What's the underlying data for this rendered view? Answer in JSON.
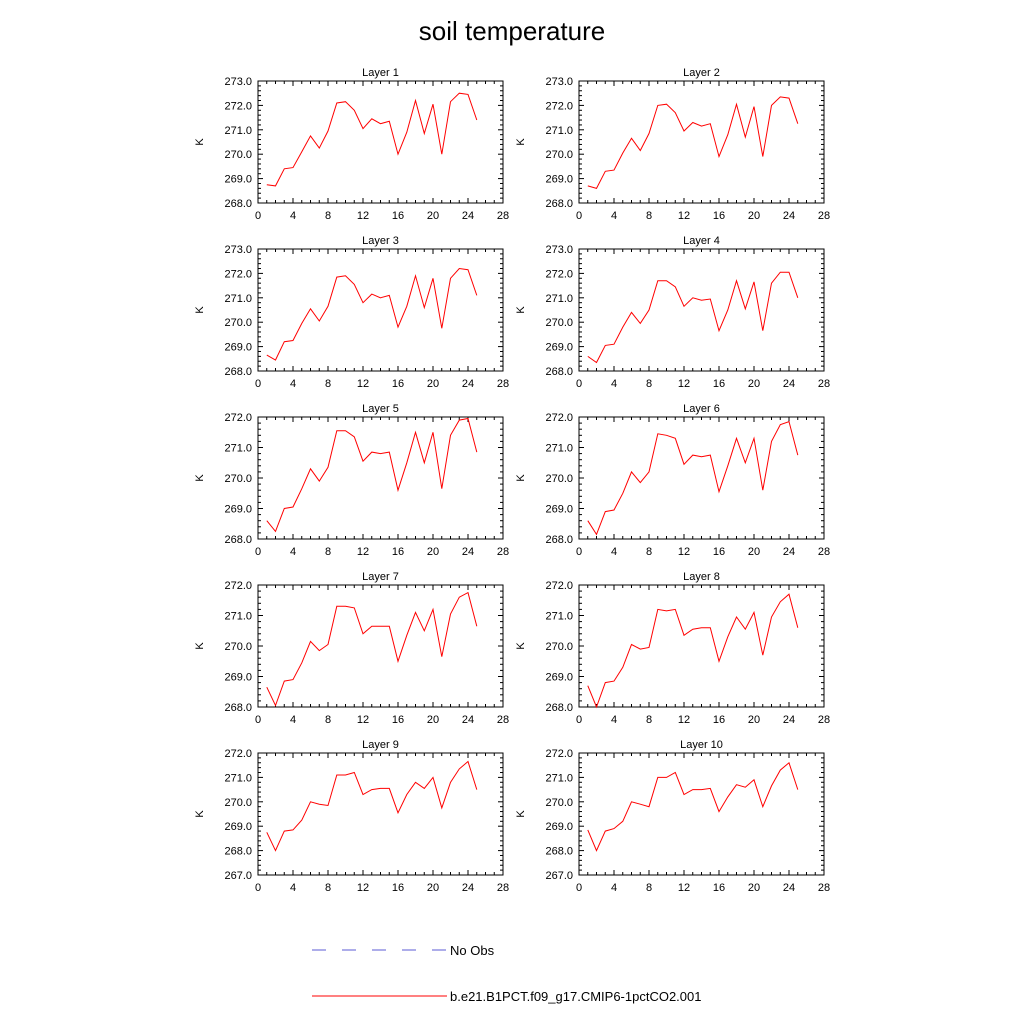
{
  "title": "soil temperature",
  "legend": {
    "entries": [
      {
        "label": "No Obs",
        "color": "#5b5bd6",
        "style": "dashed"
      },
      {
        "label": "b.e21.B1PCT.f09_g17.CMIP6-1pctCO2.001",
        "color": "#ff0000",
        "style": "solid"
      }
    ]
  },
  "chart_data": [
    {
      "type": "line",
      "title": "Layer 1",
      "ylabel": "K",
      "xlim": [
        0,
        28
      ],
      "ylim": [
        268,
        273
      ],
      "xticks": [
        0,
        4,
        8,
        12,
        16,
        20,
        24,
        28
      ],
      "yticks": [
        "268.0",
        "269.0",
        "270.0",
        "271.0",
        "272.0",
        "273.0"
      ],
      "series": [
        {
          "color": "#ff0000",
          "x": [
            1,
            2,
            3,
            4,
            5,
            6,
            7,
            8,
            9,
            10,
            11,
            12,
            13,
            14,
            15,
            16,
            17,
            18,
            19,
            20,
            21,
            22,
            23,
            24,
            25
          ],
          "y": [
            268.75,
            268.7,
            269.4,
            269.45,
            270.1,
            270.75,
            270.25,
            270.95,
            272.1,
            272.15,
            271.8,
            271.05,
            271.45,
            271.25,
            271.35,
            270.0,
            270.9,
            272.2,
            270.85,
            272.05,
            270.0,
            272.15,
            272.5,
            272.45,
            271.4
          ]
        }
      ]
    },
    {
      "type": "line",
      "title": "Layer 2",
      "ylabel": "K",
      "xlim": [
        0,
        28
      ],
      "ylim": [
        268,
        273
      ],
      "xticks": [
        0,
        4,
        8,
        12,
        16,
        20,
        24,
        28
      ],
      "yticks": [
        "268.0",
        "269.0",
        "270.0",
        "271.0",
        "272.0",
        "273.0"
      ],
      "series": [
        {
          "color": "#ff0000",
          "x": [
            1,
            2,
            3,
            4,
            5,
            6,
            7,
            8,
            9,
            10,
            11,
            12,
            13,
            14,
            15,
            16,
            17,
            18,
            19,
            20,
            21,
            22,
            23,
            24,
            25
          ],
          "y": [
            268.7,
            268.6,
            269.3,
            269.35,
            270.05,
            270.65,
            270.15,
            270.85,
            272.0,
            272.05,
            271.7,
            270.95,
            271.3,
            271.15,
            271.25,
            269.9,
            270.8,
            272.05,
            270.7,
            271.95,
            269.9,
            272.0,
            272.35,
            272.3,
            271.25
          ]
        }
      ]
    },
    {
      "type": "line",
      "title": "Layer 3",
      "ylabel": "K",
      "xlim": [
        0,
        28
      ],
      "ylim": [
        268,
        273
      ],
      "xticks": [
        0,
        4,
        8,
        12,
        16,
        20,
        24,
        28
      ],
      "yticks": [
        "268.0",
        "269.0",
        "270.0",
        "271.0",
        "272.0",
        "273.0"
      ],
      "series": [
        {
          "color": "#ff0000",
          "x": [
            1,
            2,
            3,
            4,
            5,
            6,
            7,
            8,
            9,
            10,
            11,
            12,
            13,
            14,
            15,
            16,
            17,
            18,
            19,
            20,
            21,
            22,
            23,
            24,
            25
          ],
          "y": [
            268.65,
            268.45,
            269.2,
            269.25,
            269.95,
            270.55,
            270.05,
            270.65,
            271.85,
            271.9,
            271.55,
            270.8,
            271.15,
            271.0,
            271.1,
            269.8,
            270.65,
            271.9,
            270.6,
            271.8,
            269.75,
            271.8,
            272.2,
            272.15,
            271.1
          ]
        }
      ]
    },
    {
      "type": "line",
      "title": "Layer 4",
      "ylabel": "K",
      "xlim": [
        0,
        28
      ],
      "ylim": [
        268,
        273
      ],
      "xticks": [
        0,
        4,
        8,
        12,
        16,
        20,
        24,
        28
      ],
      "yticks": [
        "268.0",
        "269.0",
        "270.0",
        "271.0",
        "272.0",
        "273.0"
      ],
      "series": [
        {
          "color": "#ff0000",
          "x": [
            1,
            2,
            3,
            4,
            5,
            6,
            7,
            8,
            9,
            10,
            11,
            12,
            13,
            14,
            15,
            16,
            17,
            18,
            19,
            20,
            21,
            22,
            23,
            24,
            25
          ],
          "y": [
            268.6,
            268.35,
            269.05,
            269.1,
            269.8,
            270.4,
            269.95,
            270.5,
            271.7,
            271.7,
            271.45,
            270.65,
            271.0,
            270.9,
            270.95,
            269.65,
            270.5,
            271.7,
            270.55,
            271.65,
            269.65,
            271.6,
            272.05,
            272.05,
            271.0
          ]
        }
      ]
    },
    {
      "type": "line",
      "title": "Layer 5",
      "ylabel": "K",
      "xlim": [
        0,
        28
      ],
      "ylim": [
        268,
        272
      ],
      "xticks": [
        0,
        4,
        8,
        12,
        16,
        20,
        24,
        28
      ],
      "yticks": [
        "268.0",
        "269.0",
        "270.0",
        "271.0",
        "272.0"
      ],
      "series": [
        {
          "color": "#ff0000",
          "x": [
            1,
            2,
            3,
            4,
            5,
            6,
            7,
            8,
            9,
            10,
            11,
            12,
            13,
            14,
            15,
            16,
            17,
            18,
            19,
            20,
            21,
            22,
            23,
            24,
            25
          ],
          "y": [
            268.6,
            268.25,
            269.0,
            269.05,
            269.65,
            270.3,
            269.9,
            270.35,
            271.55,
            271.55,
            271.35,
            270.55,
            270.85,
            270.8,
            270.85,
            269.6,
            270.5,
            271.5,
            270.5,
            271.5,
            269.65,
            271.4,
            271.9,
            271.95,
            270.85
          ]
        }
      ]
    },
    {
      "type": "line",
      "title": "Layer 6",
      "ylabel": "K",
      "xlim": [
        0,
        28
      ],
      "ylim": [
        268,
        272
      ],
      "xticks": [
        0,
        4,
        8,
        12,
        16,
        20,
        24,
        28
      ],
      "yticks": [
        "268.0",
        "269.0",
        "270.0",
        "271.0",
        "272.0"
      ],
      "series": [
        {
          "color": "#ff0000",
          "x": [
            1,
            2,
            3,
            4,
            5,
            6,
            7,
            8,
            9,
            10,
            11,
            12,
            13,
            14,
            15,
            16,
            17,
            18,
            19,
            20,
            21,
            22,
            23,
            24,
            25
          ],
          "y": [
            268.6,
            268.15,
            268.9,
            268.95,
            269.5,
            270.2,
            269.85,
            270.2,
            271.45,
            271.4,
            271.3,
            270.45,
            270.75,
            270.7,
            270.75,
            269.55,
            270.4,
            271.3,
            270.5,
            271.3,
            269.6,
            271.2,
            271.75,
            271.85,
            270.75
          ]
        }
      ]
    },
    {
      "type": "line",
      "title": "Layer 7",
      "ylabel": "K",
      "xlim": [
        0,
        28
      ],
      "ylim": [
        268,
        272
      ],
      "xticks": [
        0,
        4,
        8,
        12,
        16,
        20,
        24,
        28
      ],
      "yticks": [
        "268.0",
        "269.0",
        "270.0",
        "271.0",
        "272.0"
      ],
      "series": [
        {
          "color": "#ff0000",
          "x": [
            1,
            2,
            3,
            4,
            5,
            6,
            7,
            8,
            9,
            10,
            11,
            12,
            13,
            14,
            15,
            16,
            17,
            18,
            19,
            20,
            21,
            22,
            23,
            24,
            25
          ],
          "y": [
            268.65,
            268.05,
            268.85,
            268.9,
            269.45,
            270.15,
            269.85,
            270.05,
            271.3,
            271.3,
            271.25,
            270.4,
            270.65,
            270.65,
            270.65,
            269.5,
            270.35,
            271.1,
            270.5,
            271.2,
            269.65,
            271.05,
            271.6,
            271.75,
            270.65
          ]
        }
      ]
    },
    {
      "type": "line",
      "title": "Layer 8",
      "ylabel": "K",
      "xlim": [
        0,
        28
      ],
      "ylim": [
        268,
        272
      ],
      "xticks": [
        0,
        4,
        8,
        12,
        16,
        20,
        24,
        28
      ],
      "yticks": [
        "268.0",
        "269.0",
        "270.0",
        "271.0",
        "272.0"
      ],
      "series": [
        {
          "color": "#ff0000",
          "x": [
            1,
            2,
            3,
            4,
            5,
            6,
            7,
            8,
            9,
            10,
            11,
            12,
            13,
            14,
            15,
            16,
            17,
            18,
            19,
            20,
            21,
            22,
            23,
            24,
            25
          ],
          "y": [
            268.7,
            268.0,
            268.8,
            268.85,
            269.3,
            270.05,
            269.9,
            269.95,
            271.2,
            271.15,
            271.2,
            270.35,
            270.55,
            270.6,
            270.6,
            269.5,
            270.3,
            270.95,
            270.55,
            271.1,
            269.7,
            270.95,
            271.45,
            271.7,
            270.6
          ]
        }
      ]
    },
    {
      "type": "line",
      "title": "Layer 9",
      "ylabel": "K",
      "xlim": [
        0,
        28
      ],
      "ylim": [
        267,
        272
      ],
      "xticks": [
        0,
        4,
        8,
        12,
        16,
        20,
        24,
        28
      ],
      "yticks": [
        "267.0",
        "268.0",
        "269.0",
        "270.0",
        "271.0",
        "272.0"
      ],
      "series": [
        {
          "color": "#ff0000",
          "x": [
            1,
            2,
            3,
            4,
            5,
            6,
            7,
            8,
            9,
            10,
            11,
            12,
            13,
            14,
            15,
            16,
            17,
            18,
            19,
            20,
            21,
            22,
            23,
            24,
            25
          ],
          "y": [
            268.75,
            268.0,
            268.8,
            268.85,
            269.25,
            270.0,
            269.9,
            269.85,
            271.1,
            271.1,
            271.2,
            270.3,
            270.5,
            270.55,
            270.55,
            269.55,
            270.3,
            270.8,
            270.55,
            271.0,
            269.75,
            270.8,
            271.35,
            271.65,
            270.5
          ]
        }
      ]
    },
    {
      "type": "line",
      "title": "Layer 10",
      "ylabel": "K",
      "xlim": [
        0,
        28
      ],
      "ylim": [
        267,
        272
      ],
      "xticks": [
        0,
        4,
        8,
        12,
        16,
        20,
        24,
        28
      ],
      "yticks": [
        "267.0",
        "268.0",
        "269.0",
        "270.0",
        "271.0",
        "272.0"
      ],
      "series": [
        {
          "color": "#ff0000",
          "x": [
            1,
            2,
            3,
            4,
            5,
            6,
            7,
            8,
            9,
            10,
            11,
            12,
            13,
            14,
            15,
            16,
            17,
            18,
            19,
            20,
            21,
            22,
            23,
            24,
            25
          ],
          "y": [
            268.85,
            268.0,
            268.8,
            268.9,
            269.2,
            270.0,
            269.9,
            269.8,
            271.0,
            271.0,
            271.2,
            270.3,
            270.5,
            270.5,
            270.55,
            269.6,
            270.2,
            270.7,
            270.6,
            270.9,
            269.8,
            270.65,
            271.3,
            271.6,
            270.5
          ]
        }
      ]
    }
  ]
}
